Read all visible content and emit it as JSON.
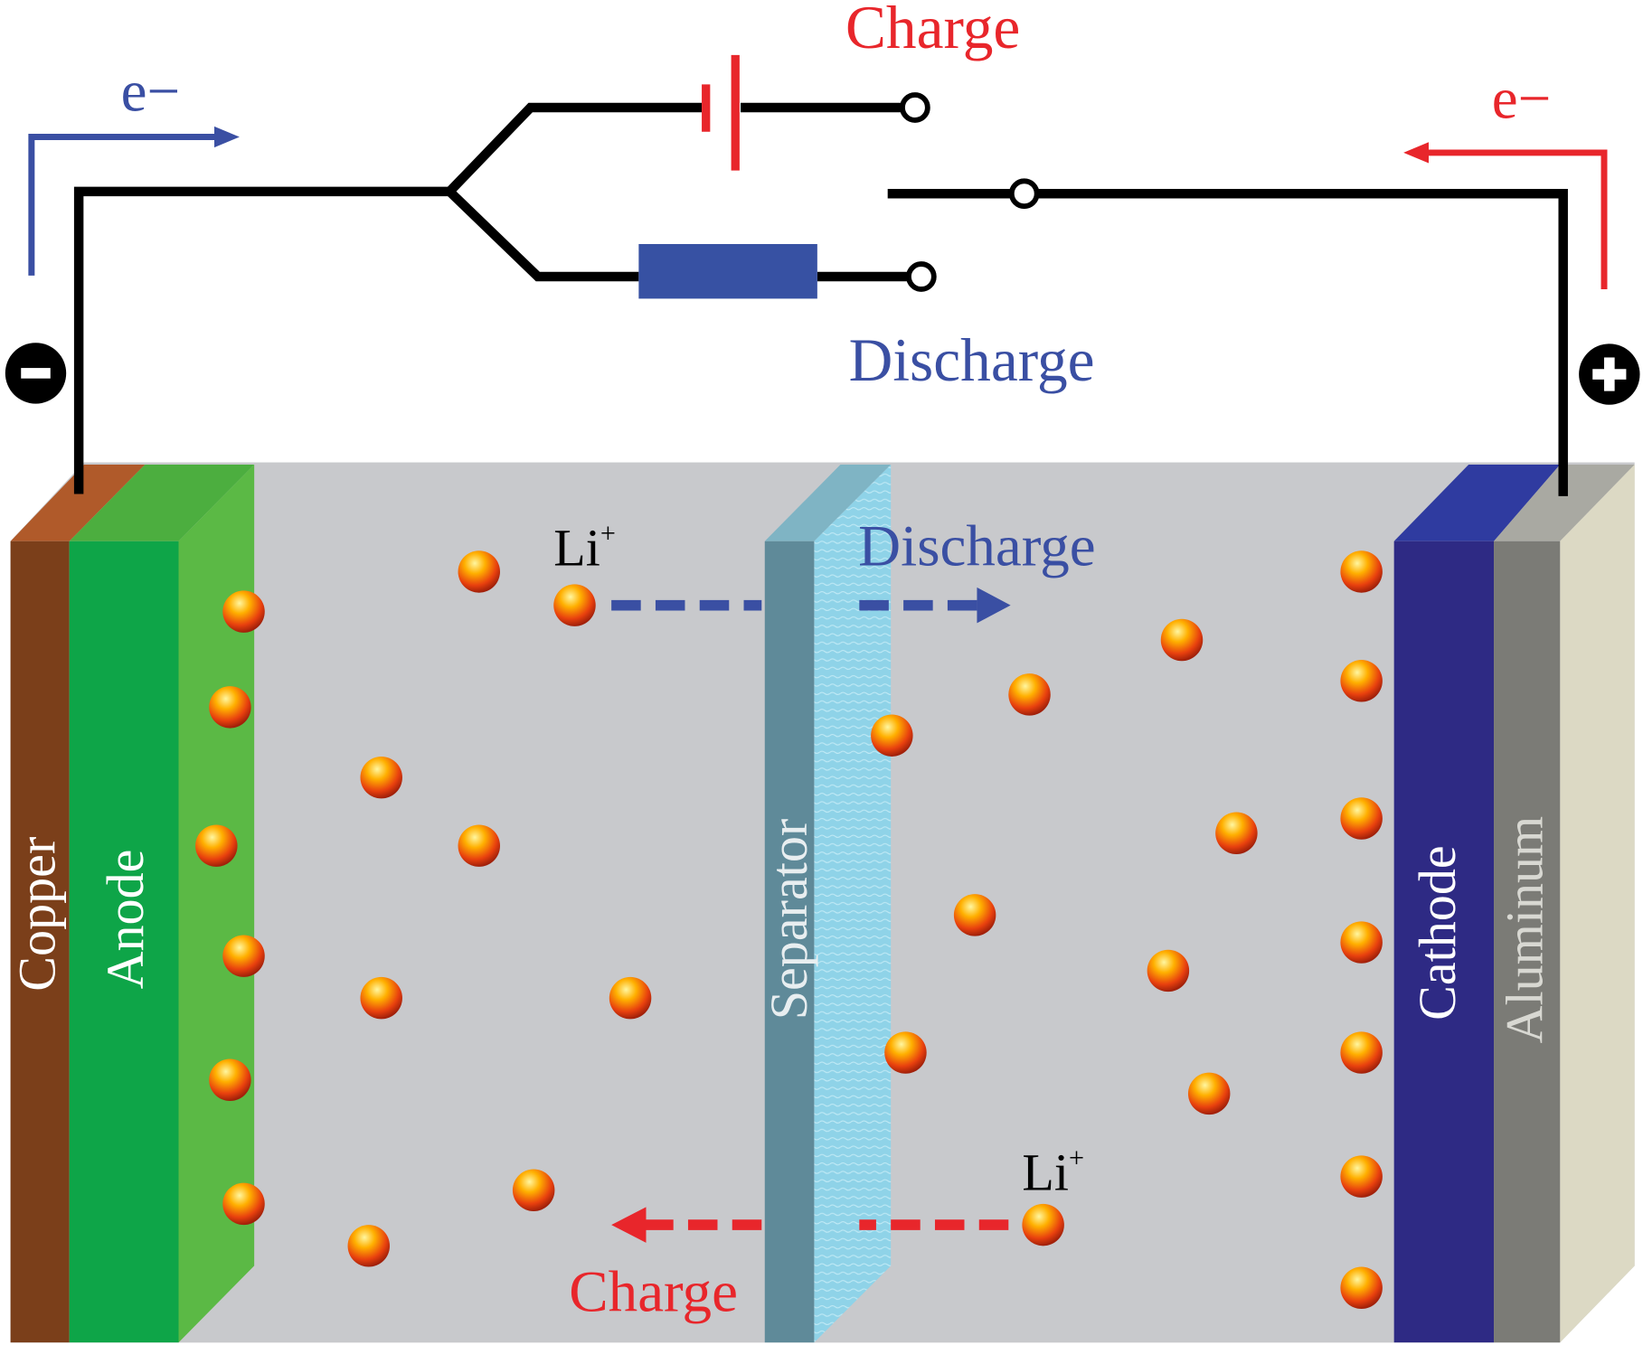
{
  "colors": {
    "charge": "#e8262b",
    "discharge": "#3a4fa3",
    "copper": "#7b3f1a",
    "anode": "#0ea548",
    "separator": "#5f8a99",
    "cathode": "#2e2a84",
    "aluminum": "#7b7b76",
    "electrolyte": "#c8c9cc"
  },
  "circuit": {
    "charge_label": "Charge",
    "discharge_label": "Discharge",
    "electron_left": "e−",
    "electron_right": "e−",
    "negative_terminal_icon": "minus-circle-icon",
    "positive_terminal_icon": "plus-circle-icon"
  },
  "cell": {
    "layers": {
      "copper": "Copper",
      "anode": "Anode",
      "separator": "Separator",
      "cathode": "Cathode",
      "aluminum": "Aluminum"
    },
    "ion_top": {
      "label": "Li",
      "sup": "+",
      "direction_label": "Discharge"
    },
    "ion_bottom": {
      "label": "Li",
      "sup": "+",
      "direction_label": "Charge"
    }
  }
}
